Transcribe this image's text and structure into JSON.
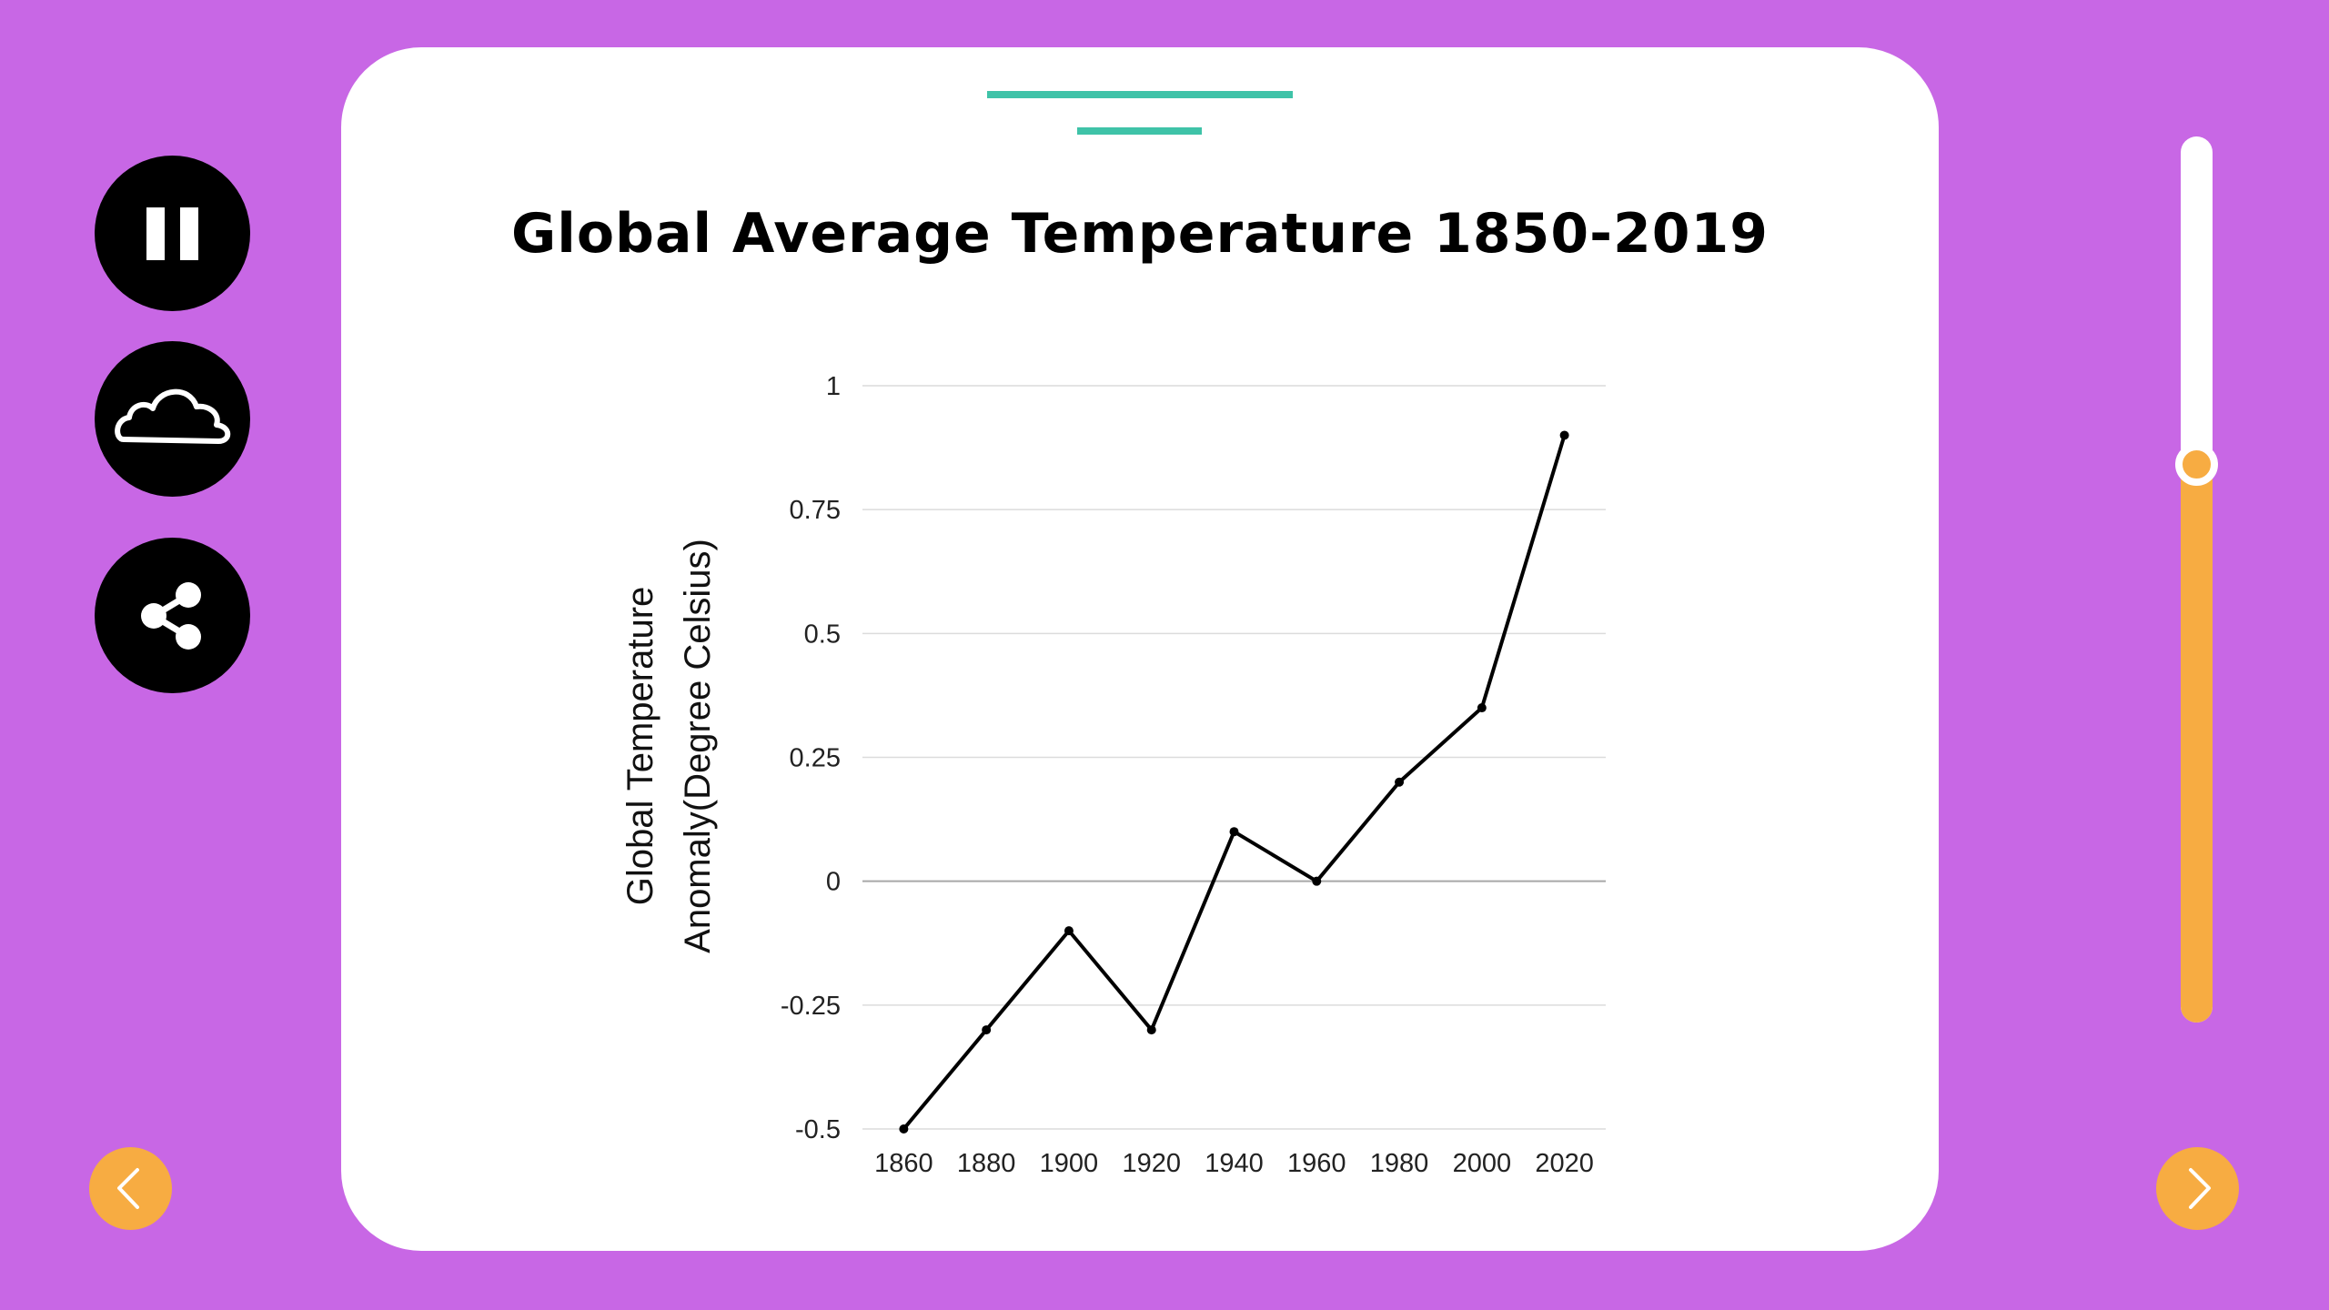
{
  "title": "Global Average Temperature 1850-2019",
  "controls": {
    "pause_icon": "pause-icon",
    "cloud_icon": "cloud-icon",
    "share_icon": "share-icon",
    "prev_icon": "chevron-left-icon",
    "next_icon": "chevron-right-icon"
  },
  "slider": {
    "level": 0.63
  },
  "colors": {
    "background": "#c867e5",
    "card": "#ffffff",
    "accent_teal": "#3fc3a8",
    "accent_orange": "#f7ac42",
    "line": "#000000"
  },
  "chart_data": {
    "type": "line",
    "title": "Global Average Temperature 1850-2019",
    "xlabel": "",
    "ylabel_lines": [
      "Global Temperature",
      "Anomaly(Degree Celsius)"
    ],
    "x": [
      1860,
      1880,
      1900,
      1920,
      1940,
      1960,
      1980,
      2000,
      2020
    ],
    "x_tick_labels": [
      "1860",
      "1880",
      "1900",
      "1920",
      "1940",
      "1960",
      "1980",
      "2000",
      "2020"
    ],
    "y_ticks": [
      1,
      0.75,
      0.5,
      0.25,
      0,
      -0.25,
      -0.5
    ],
    "y_tick_labels": [
      "1",
      "0.75",
      "0.5",
      "0.25",
      "0",
      "-0.25",
      "-0.5"
    ],
    "ylim": [
      -0.5,
      1
    ],
    "grid": true,
    "legend": "none",
    "series": [
      {
        "values": [
          -0.5,
          -0.3,
          -0.1,
          -0.3,
          0.1,
          0.0,
          0.2,
          0.35,
          0.9
        ]
      }
    ]
  }
}
